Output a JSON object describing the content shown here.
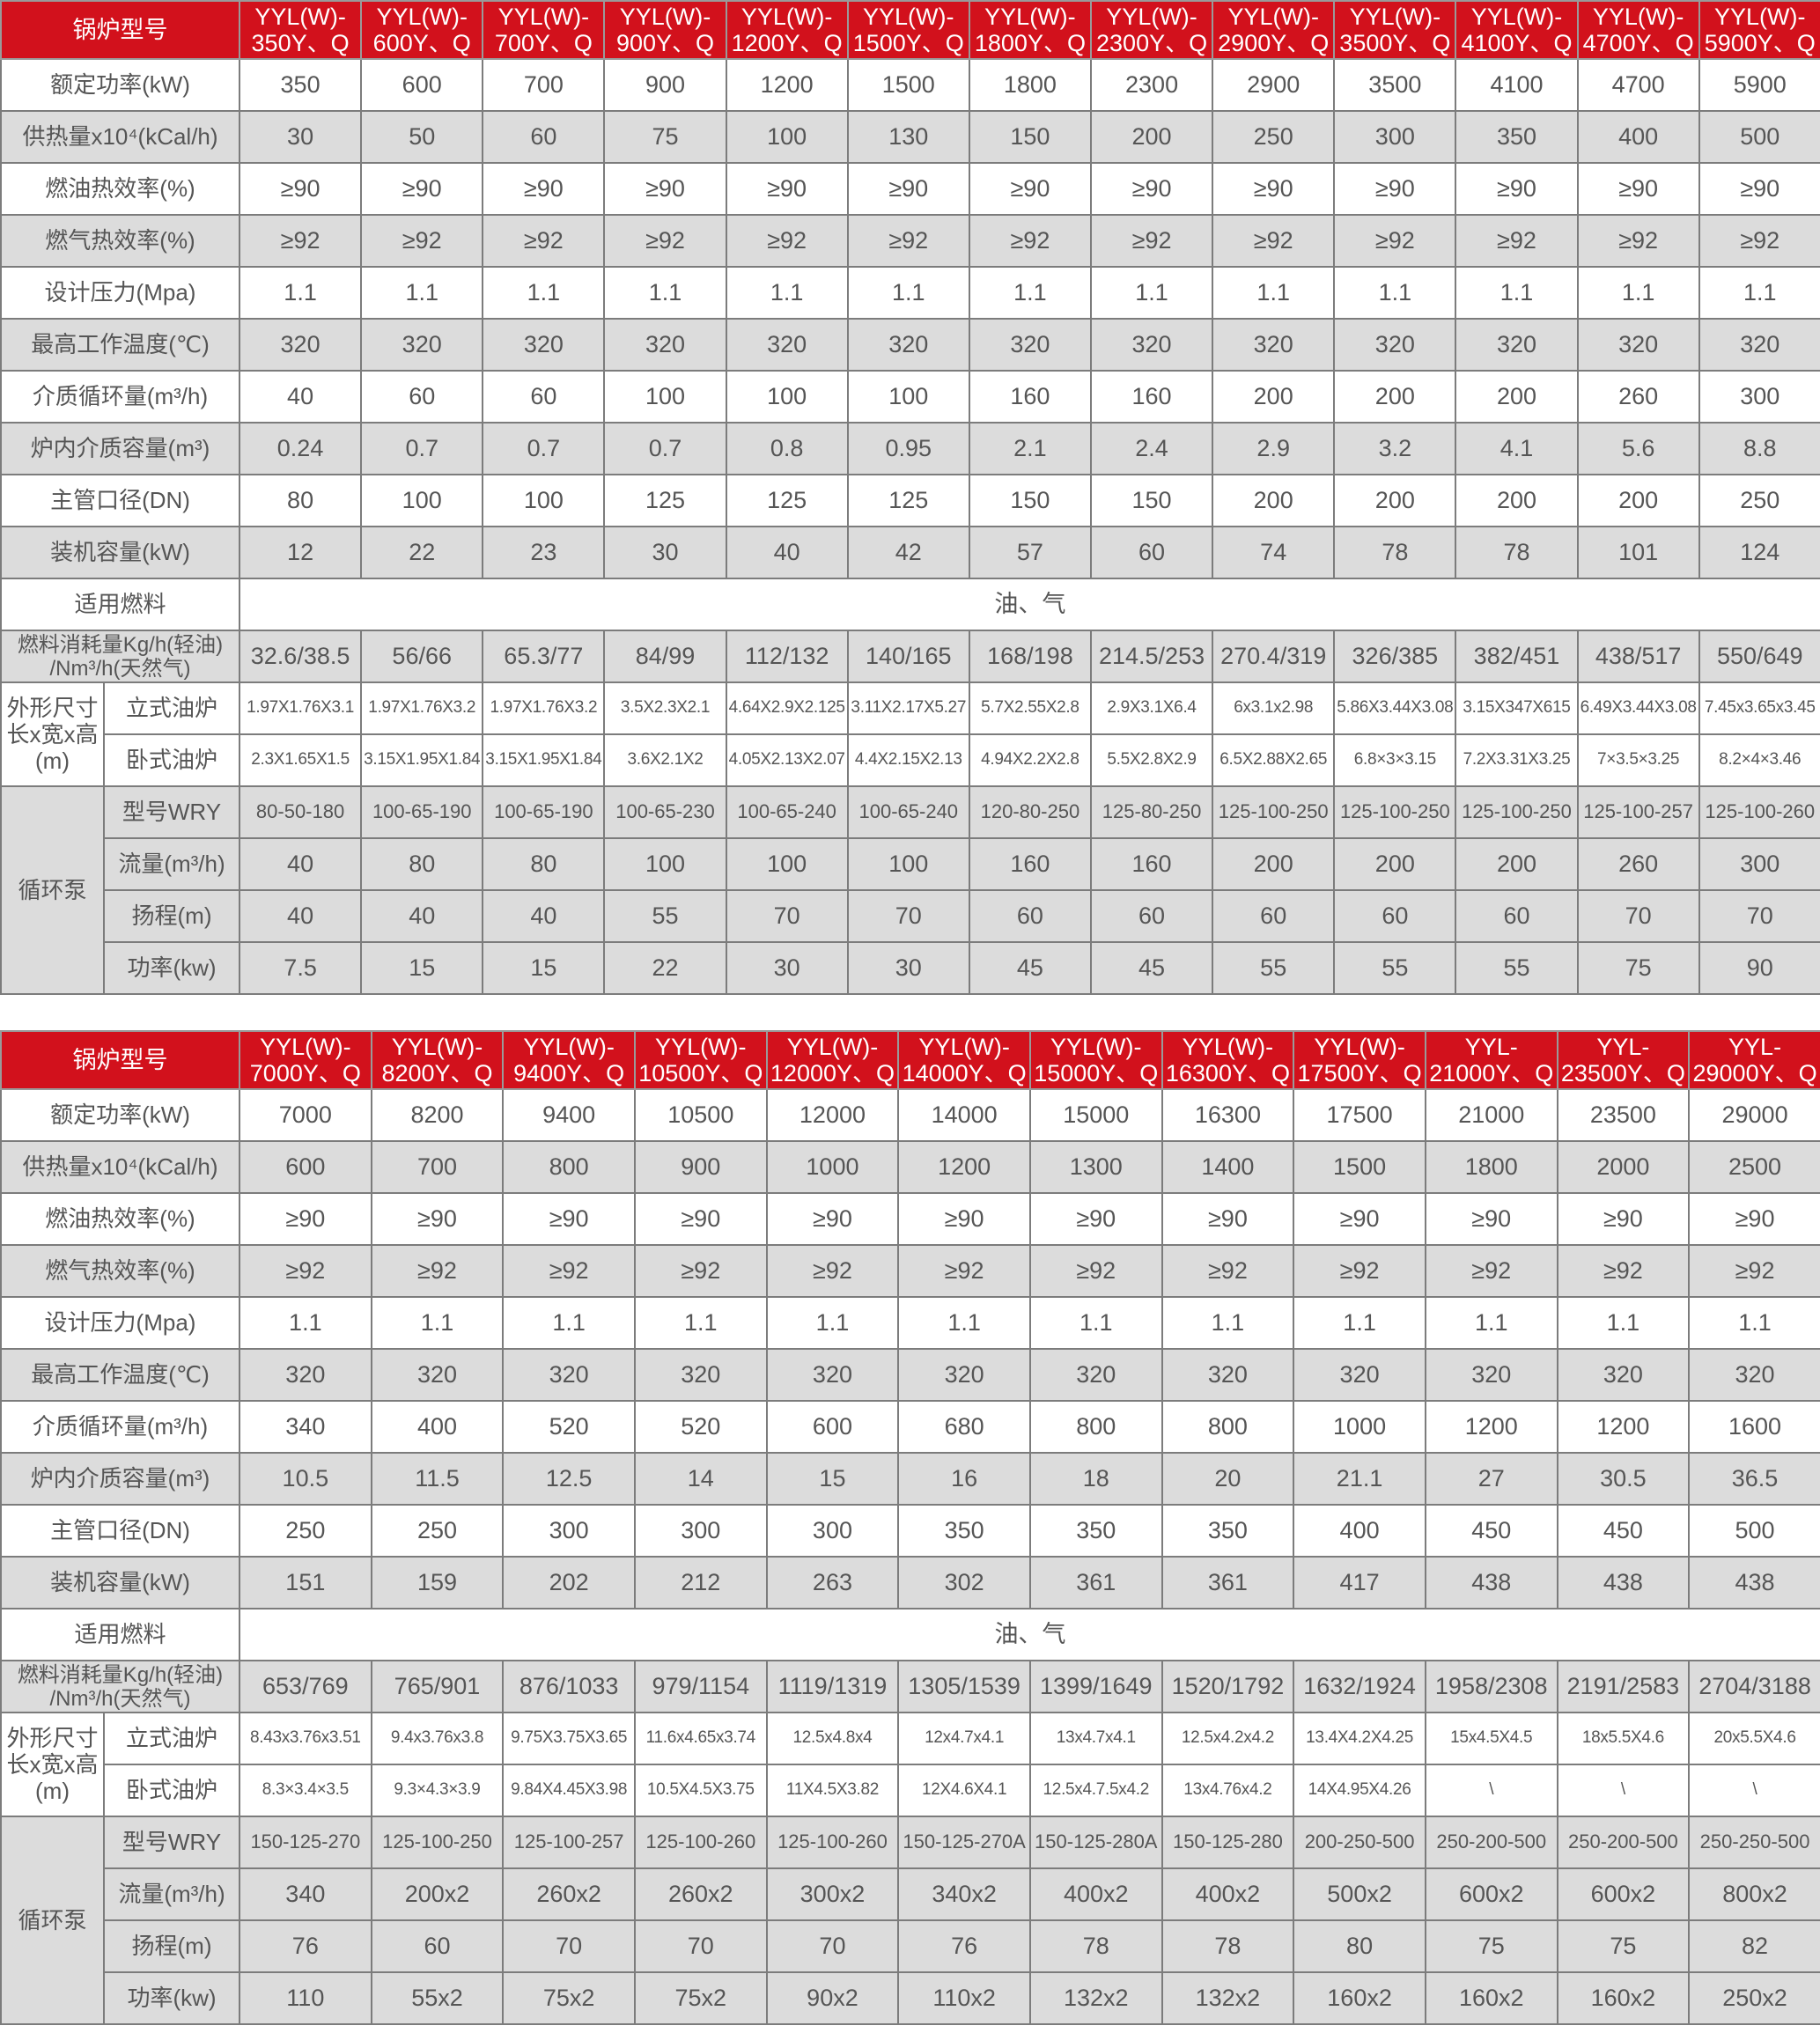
{
  "tables": [
    {
      "header_label": "锅炉型号",
      "models": [
        "YYL(W)-\n350Y、Q",
        "YYL(W)-\n600Y、Q",
        "YYL(W)-\n700Y、Q",
        "YYL(W)-\n900Y、Q",
        "YYL(W)-\n1200Y、Q",
        "YYL(W)-\n1500Y、Q",
        "YYL(W)-\n1800Y、Q",
        "YYL(W)-\n2300Y、Q",
        "YYL(W)-\n2900Y、Q",
        "YYL(W)-\n3500Y、Q",
        "YYL(W)-\n4100Y、Q",
        "YYL(W)-\n4700Y、Q",
        "YYL(W)-\n5900Y、Q"
      ],
      "rows": [
        {
          "label": "额定功率(kW)",
          "values": [
            "350",
            "600",
            "700",
            "900",
            "1200",
            "1500",
            "1800",
            "2300",
            "2900",
            "3500",
            "4100",
            "4700",
            "5900"
          ]
        },
        {
          "label": "供热量x10⁴(kCal/h)",
          "values": [
            "30",
            "50",
            "60",
            "75",
            "100",
            "130",
            "150",
            "200",
            "250",
            "300",
            "350",
            "400",
            "500"
          ]
        },
        {
          "label": "燃油热效率(%)",
          "values": [
            "≥90",
            "≥90",
            "≥90",
            "≥90",
            "≥90",
            "≥90",
            "≥90",
            "≥90",
            "≥90",
            "≥90",
            "≥90",
            "≥90",
            "≥90"
          ]
        },
        {
          "label": "燃气热效率(%)",
          "values": [
            "≥92",
            "≥92",
            "≥92",
            "≥92",
            "≥92",
            "≥92",
            "≥92",
            "≥92",
            "≥92",
            "≥92",
            "≥92",
            "≥92",
            "≥92"
          ]
        },
        {
          "label": "设计压力(Mpa)",
          "values": [
            "1.1",
            "1.1",
            "1.1",
            "1.1",
            "1.1",
            "1.1",
            "1.1",
            "1.1",
            "1.1",
            "1.1",
            "1.1",
            "1.1",
            "1.1"
          ]
        },
        {
          "label": "最高工作温度(℃)",
          "values": [
            "320",
            "320",
            "320",
            "320",
            "320",
            "320",
            "320",
            "320",
            "320",
            "320",
            "320",
            "320",
            "320"
          ]
        },
        {
          "label": "介质循环量(m³/h)",
          "values": [
            "40",
            "60",
            "60",
            "100",
            "100",
            "100",
            "160",
            "160",
            "200",
            "200",
            "200",
            "260",
            "300"
          ]
        },
        {
          "label": "炉内介质容量(m³)",
          "values": [
            "0.24",
            "0.7",
            "0.7",
            "0.7",
            "0.8",
            "0.95",
            "2.1",
            "2.4",
            "2.9",
            "3.2",
            "4.1",
            "5.6",
            "8.8"
          ]
        },
        {
          "label": "主管口径(DN)",
          "values": [
            "80",
            "100",
            "100",
            "125",
            "125",
            "125",
            "150",
            "150",
            "200",
            "200",
            "200",
            "200",
            "250"
          ]
        },
        {
          "label": "装机容量(kW)",
          "values": [
            "12",
            "22",
            "23",
            "30",
            "40",
            "42",
            "57",
            "60",
            "74",
            "78",
            "78",
            "101",
            "124"
          ]
        }
      ],
      "fuel": {
        "label": "适用燃料",
        "value": "油、气"
      },
      "consumption": {
        "label": "燃料消耗量Kg/h(轻油)\n/Nm³/h(天然气)",
        "values": [
          "32.6/38.5",
          "56/66",
          "65.3/77",
          "84/99",
          "112/132",
          "140/165",
          "168/198",
          "214.5/253",
          "270.4/319",
          "326/385",
          "382/451",
          "438/517",
          "550/649"
        ]
      },
      "dimensions": {
        "label": "外形尺寸\n长x宽x高\n(m)",
        "vertical": {
          "label": "立式油炉",
          "values": [
            "1.97X1.76X3.1",
            "1.97X1.76X3.2",
            "1.97X1.76X3.2",
            "3.5X2.3X2.1",
            "4.64X2.9X2.125",
            "3.11X2.17X5.27",
            "5.7X2.55X2.8",
            "2.9X3.1X6.4",
            "6x3.1x2.98",
            "5.86X3.44X3.08",
            "3.15X347X615",
            "6.49X3.44X3.08",
            "7.45x3.65x3.45"
          ]
        },
        "horizontal": {
          "label": "卧式油炉",
          "values": [
            "2.3X1.65X1.5",
            "3.15X1.95X1.84",
            "3.15X1.95X1.84",
            "3.6X2.1X2",
            "4.05X2.13X2.07",
            "4.4X2.15X2.13",
            "4.94X2.2X2.8",
            "5.5X2.8X2.9",
            "6.5X2.88X2.65",
            "6.8×3×3.15",
            "7.2X3.31X3.25",
            "7×3.5×3.25",
            "8.2×4×3.46"
          ]
        }
      },
      "pump": {
        "label": "循环泵",
        "rows": [
          {
            "label": "型号WRY",
            "values": [
              "80-50-180",
              "100-65-190",
              "100-65-190",
              "100-65-230",
              "100-65-240",
              "100-65-240",
              "120-80-250",
              "125-80-250",
              "125-100-250",
              "125-100-250",
              "125-100-250",
              "125-100-257",
              "125-100-260"
            ]
          },
          {
            "label": "流量(m³/h)",
            "values": [
              "40",
              "80",
              "80",
              "100",
              "100",
              "100",
              "160",
              "160",
              "200",
              "200",
              "200",
              "260",
              "300"
            ]
          },
          {
            "label": "扬程(m)",
            "values": [
              "40",
              "40",
              "40",
              "55",
              "70",
              "70",
              "60",
              "60",
              "60",
              "60",
              "60",
              "70",
              "70"
            ]
          },
          {
            "label": "功率(kw)",
            "values": [
              "7.5",
              "15",
              "15",
              "22",
              "30",
              "30",
              "45",
              "45",
              "55",
              "55",
              "55",
              "75",
              "90"
            ]
          }
        ]
      }
    },
    {
      "header_label": "锅炉型号",
      "models": [
        "YYL(W)-\n7000Y、Q",
        "YYL(W)-\n8200Y、Q",
        "YYL(W)-\n9400Y、Q",
        "YYL(W)-\n10500Y、Q",
        "YYL(W)-\n12000Y、Q",
        "YYL(W)-\n14000Y、Q",
        "YYL(W)-\n15000Y、Q",
        "YYL(W)-\n16300Y、Q",
        "YYL(W)-\n17500Y、Q",
        "YYL-\n21000Y、Q",
        "YYL-\n23500Y、Q",
        "YYL-\n29000Y、Q"
      ],
      "rows": [
        {
          "label": "额定功率(kW)",
          "values": [
            "7000",
            "8200",
            "9400",
            "10500",
            "12000",
            "14000",
            "15000",
            "16300",
            "17500",
            "21000",
            "23500",
            "29000"
          ]
        },
        {
          "label": "供热量x10⁴(kCal/h)",
          "values": [
            "600",
            "700",
            "800",
            "900",
            "1000",
            "1200",
            "1300",
            "1400",
            "1500",
            "1800",
            "2000",
            "2500"
          ]
        },
        {
          "label": "燃油热效率(%)",
          "values": [
            "≥90",
            "≥90",
            "≥90",
            "≥90",
            "≥90",
            "≥90",
            "≥90",
            "≥90",
            "≥90",
            "≥90",
            "≥90",
            "≥90"
          ]
        },
        {
          "label": "燃气热效率(%)",
          "values": [
            "≥92",
            "≥92",
            "≥92",
            "≥92",
            "≥92",
            "≥92",
            "≥92",
            "≥92",
            "≥92",
            "≥92",
            "≥92",
            "≥92"
          ]
        },
        {
          "label": "设计压力(Mpa)",
          "values": [
            "1.1",
            "1.1",
            "1.1",
            "1.1",
            "1.1",
            "1.1",
            "1.1",
            "1.1",
            "1.1",
            "1.1",
            "1.1",
            "1.1"
          ]
        },
        {
          "label": "最高工作温度(℃)",
          "values": [
            "320",
            "320",
            "320",
            "320",
            "320",
            "320",
            "320",
            "320",
            "320",
            "320",
            "320",
            "320"
          ]
        },
        {
          "label": "介质循环量(m³/h)",
          "values": [
            "340",
            "400",
            "520",
            "520",
            "600",
            "680",
            "800",
            "800",
            "1000",
            "1200",
            "1200",
            "1600"
          ]
        },
        {
          "label": "炉内介质容量(m³)",
          "values": [
            "10.5",
            "11.5",
            "12.5",
            "14",
            "15",
            "16",
            "18",
            "20",
            "21.1",
            "27",
            "30.5",
            "36.5"
          ]
        },
        {
          "label": "主管口径(DN)",
          "values": [
            "250",
            "250",
            "300",
            "300",
            "300",
            "350",
            "350",
            "350",
            "400",
            "450",
            "450",
            "500"
          ]
        },
        {
          "label": "装机容量(kW)",
          "values": [
            "151",
            "159",
            "202",
            "212",
            "263",
            "302",
            "361",
            "361",
            "417",
            "438",
            "438",
            "438"
          ]
        }
      ],
      "fuel": {
        "label": "适用燃料",
        "value": "油、气"
      },
      "consumption": {
        "label": "燃料消耗量Kg/h(轻油)\n/Nm³/h(天然气)",
        "values": [
          "653/769",
          "765/901",
          "876/1033",
          "979/1154",
          "1119/1319",
          "1305/1539",
          "1399/1649",
          "1520/1792",
          "1632/1924",
          "1958/2308",
          "2191/2583",
          "2704/3188"
        ]
      },
      "dimensions": {
        "label": "外形尺寸\n长x宽x高\n(m)",
        "vertical": {
          "label": "立式油炉",
          "values": [
            "8.43x3.76x3.51",
            "9.4x3.76x3.8",
            "9.75X3.75X3.65",
            "11.6x4.65x3.74",
            "12.5x4.8x4",
            "12x4.7x4.1",
            "13x4.7x4.1",
            "12.5x4.2x4.2",
            "13.4X4.2X4.25",
            "15x4.5X4.5",
            "18x5.5X4.6",
            "20x5.5X4.6"
          ]
        },
        "horizontal": {
          "label": "卧式油炉",
          "values": [
            "8.3×3.4×3.5",
            "9.3×4.3×3.9",
            "9.84X4.45X3.98",
            "10.5X4.5X3.75",
            "11X4.5X3.82",
            "12X4.6X4.1",
            "12.5x4.7.5x4.2",
            "13x4.76x4.2",
            "14X4.95X4.26",
            "\\",
            "\\",
            "\\"
          ]
        }
      },
      "pump": {
        "label": "循环泵",
        "rows": [
          {
            "label": "型号WRY",
            "values": [
              "150-125-270",
              "125-100-250",
              "125-100-257",
              "125-100-260",
              "125-100-260",
              "150-125-270A",
              "150-125-280A",
              "150-125-280",
              "200-250-500",
              "250-200-500",
              "250-200-500",
              "250-250-500"
            ]
          },
          {
            "label": "流量(m³/h)",
            "values": [
              "340",
              "200x2",
              "260x2",
              "260x2",
              "300x2",
              "340x2",
              "400x2",
              "400x2",
              "500x2",
              "600x2",
              "600x2",
              "800x2"
            ]
          },
          {
            "label": "扬程(m)",
            "values": [
              "76",
              "60",
              "70",
              "70",
              "70",
              "76",
              "78",
              "78",
              "80",
              "75",
              "75",
              "82"
            ]
          },
          {
            "label": "功率(kw)",
            "values": [
              "110",
              "55x2",
              "75x2",
              "75x2",
              "90x2",
              "110x2",
              "132x2",
              "132x2",
              "160x2",
              "160x2",
              "160x2",
              "250x2"
            ]
          }
        ]
      }
    }
  ],
  "colors": {
    "header_red": "#d2111c",
    "row_gray": "#dcdcdc",
    "border": "#7c7c7c",
    "text": "#555555"
  }
}
